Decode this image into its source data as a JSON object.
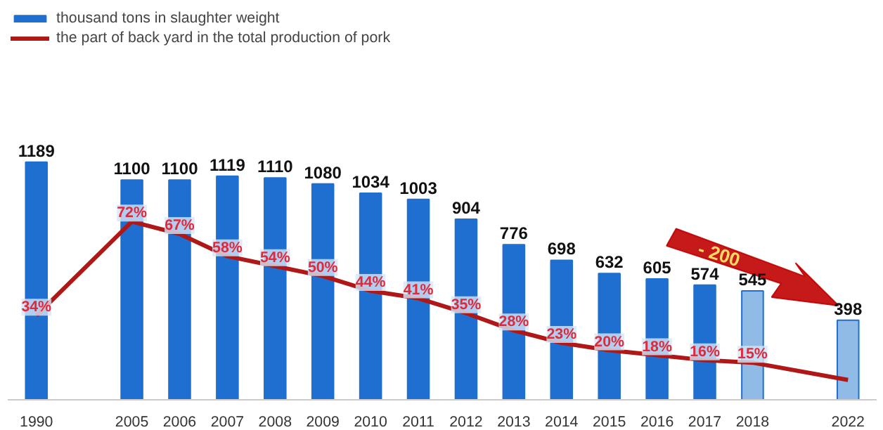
{
  "chart_data": {
    "type": "bar",
    "categories": [
      "1990",
      null,
      "2005",
      "2006",
      "2007",
      "2008",
      "2009",
      "2010",
      "2011",
      "2012",
      "2013",
      "2014",
      "2015",
      "2016",
      "2017",
      "2018",
      null,
      "2022"
    ],
    "series": [
      {
        "name": "thousand tons in slaughter weight",
        "color": "#1f6fd0",
        "colors": [
          "#1f6fd0",
          "#1f6fd0",
          "#1f6fd0",
          "#1f6fd0",
          "#1f6fd0",
          "#1f6fd0",
          "#1f6fd0",
          "#1f6fd0",
          "#1f6fd0",
          "#1f6fd0",
          "#1f6fd0",
          "#1f6fd0",
          "#1f6fd0",
          "#1f6fd0",
          "#1f6fd0",
          "#8fbbe6",
          "#8fbbe6",
          "#8fbbe6"
        ],
        "values": [
          1189,
          null,
          1100,
          1100,
          1119,
          1110,
          1080,
          1034,
          1003,
          904,
          776,
          698,
          632,
          605,
          574,
          545,
          null,
          398
        ]
      },
      {
        "name": "the part of back yard in the total production of pork",
        "type": "line",
        "axis": "y2",
        "color": "#b01818",
        "values": [
          34,
          null,
          72,
          67,
          58,
          54,
          50,
          44,
          41,
          35,
          28,
          23,
          20,
          18,
          16,
          15,
          null,
          8
        ],
        "value_labels": [
          "34%",
          null,
          "72%",
          "67%",
          "58%",
          "54%",
          "50%",
          "44%",
          "41%",
          "35%",
          "28%",
          "23%",
          "20%",
          "18%",
          "16%",
          "15%",
          null,
          null
        ]
      }
    ],
    "data_labels": true,
    "annotations": [
      "- 200"
    ],
    "tick_labels": "x",
    "grid": false,
    "legend": "top left",
    "marker": "none",
    "line_style": "solid"
  }
}
